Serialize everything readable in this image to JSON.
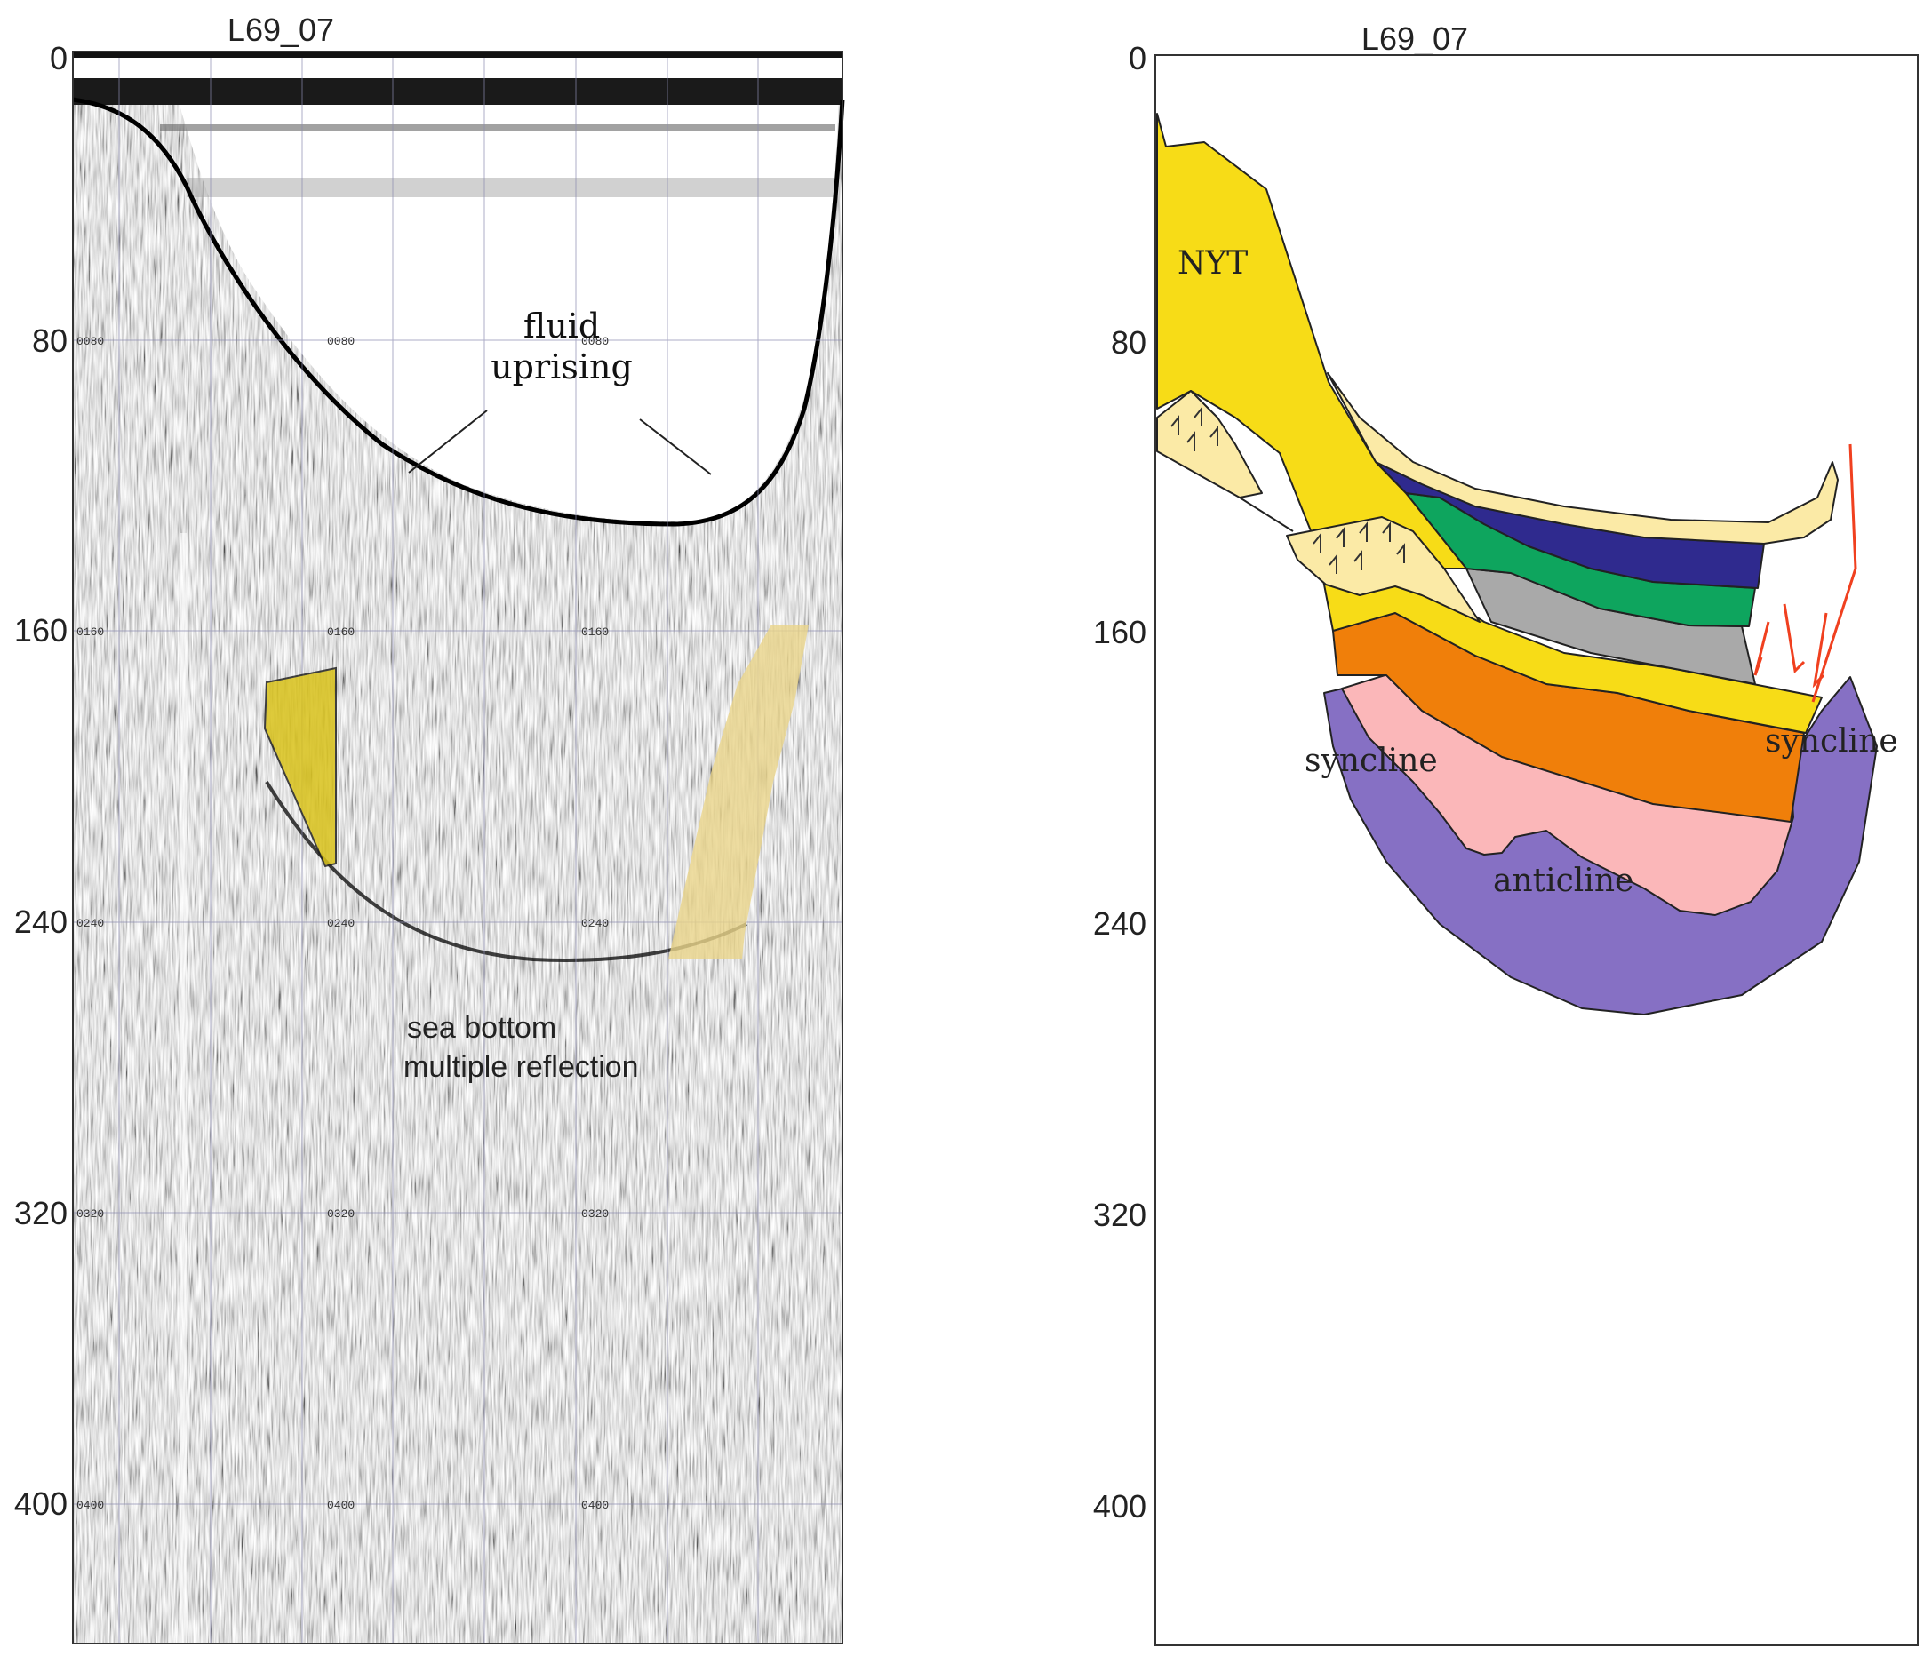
{
  "left_panel": {
    "title": "L69_07",
    "y_ticks": [
      "0",
      "80",
      "160",
      "240",
      "320",
      "400"
    ],
    "inner_tick_labels": [
      "0080",
      "0160",
      "0240",
      "0320",
      "0400"
    ],
    "annotations": {
      "fluid_line1": "fluid",
      "fluid_line2": "uprising",
      "multiple_line1": "sea bottom",
      "multiple_line2": "multiple reflection"
    },
    "highlight_colors": {
      "left_body": "#d9c21a",
      "right_body": "#ead58a"
    }
  },
  "right_panel": {
    "title": "L69_07",
    "y_ticks": [
      "0",
      "80",
      "160",
      "240",
      "320",
      "400"
    ],
    "labels": {
      "nyt": "NYT",
      "syncline_left": "syncline",
      "syncline_right": "syncline",
      "anticline": "anticline"
    },
    "layer_colors": {
      "yellow": "#f7dc17",
      "cream": "#fbeaa6",
      "navy": "#2f2a8e",
      "green": "#0ea55e",
      "gray": "#a9a9a9",
      "orange": "#f07f0a",
      "pink": "#fbb7b9",
      "purple": "#8670c4",
      "fault": "#f0401f"
    }
  }
}
